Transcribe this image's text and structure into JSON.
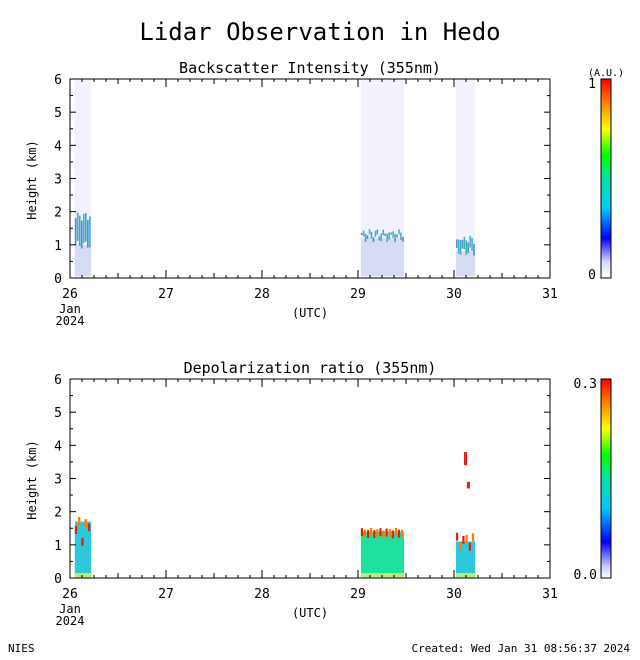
{
  "title": "Lidar Observation in Hedo",
  "footer": {
    "left": "NIES",
    "right": "Created: Wed Jan 31 08:56:37 2024"
  },
  "colors": {
    "axis": "#000000",
    "backscatter_bg": "#d7dcf5",
    "backscatter_cloud": [
      "#2c7bd6",
      "#28a0c8",
      "#1ea0a0"
    ],
    "depol_fill": "#2cc8dc",
    "depol_fill2": "#20e0a0",
    "depol_high": "#e02010",
    "depol_ground": "#b4f07a"
  },
  "chart_data": [
    {
      "type": "heatmap",
      "title": "Backscatter Intensity (355nm)",
      "ylabel": "Height (km)",
      "xlabel": "(UTC)",
      "xlim": [
        26,
        31
      ],
      "ylim": [
        0,
        6
      ],
      "x_ticks": [
        "26",
        "27",
        "28",
        "29",
        "30",
        "31"
      ],
      "x_tick_sub": [
        "Jan",
        "2024"
      ],
      "y_ticks": [
        "0",
        "1",
        "2",
        "3",
        "4",
        "5",
        "6"
      ],
      "colorbar": {
        "unit": "(A.U.)",
        "min": "0",
        "max": "1"
      },
      "observation_periods": [
        {
          "start": 26.05,
          "end": 26.22,
          "cloud_base_km": 1.0,
          "cloud_top_km": 1.9
        },
        {
          "start": 29.03,
          "end": 29.48,
          "cloud_base_km": 1.2,
          "cloud_top_km": 1.4
        },
        {
          "start": 30.02,
          "end": 30.22,
          "cloud_base_km": 0.8,
          "cloud_top_km": 1.2
        }
      ]
    },
    {
      "type": "heatmap",
      "title": "Depolarization ratio (355nm)",
      "ylabel": "Height (km)",
      "xlabel": "(UTC)",
      "xlim": [
        26,
        31
      ],
      "ylim": [
        0,
        6
      ],
      "x_ticks": [
        "26",
        "27",
        "28",
        "29",
        "30",
        "31"
      ],
      "x_tick_sub": [
        "Jan",
        "2024"
      ],
      "y_ticks": [
        "0",
        "1",
        "2",
        "3",
        "4",
        "5",
        "6"
      ],
      "colorbar": {
        "min": "0.0",
        "max": "0.3"
      },
      "observation_periods": [
        {
          "start": 26.05,
          "end": 26.22,
          "layer_top_km": 1.7,
          "high_depol_km": [
            1.0,
            1.9
          ]
        },
        {
          "start": 29.03,
          "end": 29.48,
          "layer_top_km": 1.4,
          "high_depol_km": [
            1.3,
            1.4
          ]
        },
        {
          "start": 30.02,
          "end": 30.22,
          "layer_top_km": 1.1,
          "high_depol_km": [
            0.9,
            1.3
          ]
        }
      ],
      "upper_features": [
        {
          "x": 30.12,
          "height_km": [
            3.4,
            3.8
          ]
        },
        {
          "x": 30.15,
          "height_km": [
            2.7,
            2.9
          ]
        }
      ]
    }
  ]
}
